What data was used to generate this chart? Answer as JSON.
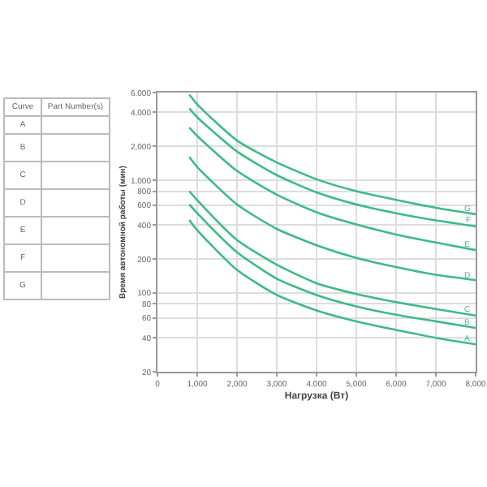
{
  "chart_data": [
    {
      "type": "other",
      "annotations": [
        "Curve",
        "Part Number(s)"
      ],
      "categories": [
        "A",
        "B",
        "C",
        "D",
        "E",
        "F",
        "G"
      ]
    },
    {
      "type": "line",
      "xlabel": "Нагрузка (Вт)",
      "ylabel": "Время автономной работы (мин)",
      "log": "y",
      "grid": true,
      "legend": false,
      "marker": "none",
      "line_style": "solid",
      "x": [
        800,
        1000,
        2000,
        3000,
        4000,
        5000,
        6000,
        7000,
        8000
      ],
      "xlim": [
        0,
        8000
      ],
      "xticks": [
        {
          "value": 0,
          "label": "0"
        },
        {
          "value": 1000,
          "label": "1,000"
        },
        {
          "value": 2000,
          "label": "2,000"
        },
        {
          "value": 3000,
          "label": "3,000"
        },
        {
          "value": 4000,
          "label": "4,000"
        },
        {
          "value": 5000,
          "label": "5,000"
        },
        {
          "value": 6000,
          "label": "6,000"
        },
        {
          "value": 7000,
          "label": "7,000"
        },
        {
          "value": 8000,
          "label": "8,000"
        }
      ],
      "ylim": [
        20,
        6000
      ],
      "yticks": [
        20,
        40,
        60,
        80,
        100,
        200,
        400,
        600,
        800,
        {
          "value": 1000,
          "label": "1,000"
        },
        {
          "value": 2000,
          "label": "2,000"
        },
        {
          "value": 4000,
          "label": "4,000"
        },
        {
          "value": 6000,
          "label": "6,000"
        }
      ],
      "series": [
        {
          "name": "A",
          "color": "#3dbb84",
          "values": [
            445,
            360,
            160,
            96,
            70,
            56,
            47,
            40,
            35
          ]
        },
        {
          "name": "B",
          "color": "#3dbb84",
          "values": [
            610,
            510,
            230,
            134,
            96,
            76,
            64,
            56,
            49
          ]
        },
        {
          "name": "C",
          "color": "#3dbb84",
          "values": [
            800,
            665,
            295,
            178,
            122,
            98,
            83,
            72,
            63
          ]
        },
        {
          "name": "D",
          "color": "#3dbb84",
          "values": [
            1610,
            1310,
            610,
            370,
            265,
            205,
            170,
            145,
            130
          ]
        },
        {
          "name": "E",
          "color": "#3dbb84",
          "values": [
            2930,
            2470,
            1210,
            745,
            520,
            405,
            330,
            280,
            240
          ]
        },
        {
          "name": "F",
          "color": "#3dbb84",
          "values": [
            4330,
            3620,
            1800,
            1110,
            780,
            610,
            510,
            440,
            390
          ]
        },
        {
          "name": "G",
          "color": "#3dbb84",
          "values": [
            5750,
            4700,
            2250,
            1440,
            1020,
            800,
            670,
            570,
            500
          ]
        }
      ]
    }
  ]
}
